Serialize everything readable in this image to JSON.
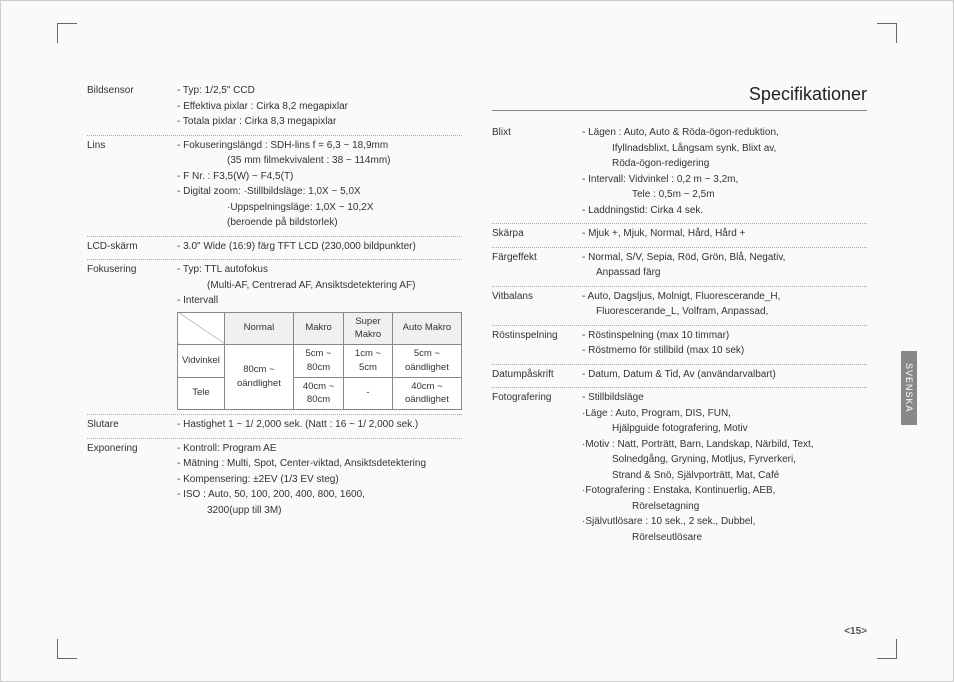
{
  "page_title": "Specifikationer",
  "side_tab": "SVENSKA",
  "page_number": "<15>",
  "left_specs": [
    {
      "label": "Bildsensor",
      "lines": [
        "- Typ: 1/2,5\" CCD",
        "- Effektiva pixlar : Cirka 8,2 megapixlar",
        "- Totala pixlar : Cirka 8,3 megapixlar"
      ]
    },
    {
      "label": "Lins",
      "lines": [
        "- Fokuseringslängd : SDH-lins f = 6,3 ~ 18,9mm",
        {
          "text": "(35 mm filmekvivalent : 38 ~ 114mm)",
          "class": "indent1"
        },
        "- F Nr. : F3,5(W) ~ F4,5(T)",
        "- Digital zoom: ·Stillbildsläge: 1,0X ~ 5,0X",
        {
          "text": "·Uppspelningsläge: 1,0X ~ 10,2X",
          "class": "indent1"
        },
        {
          "text": "(beroende på bildstorlek)",
          "class": "indent1"
        }
      ]
    },
    {
      "label": "LCD-skärm",
      "lines": [
        "- 3.0\" Wide (16:9) färg TFT LCD (230,000 bildpunkter)"
      ]
    },
    {
      "label": "Fokusering",
      "lines": [
        "- Typ: TTL autofokus",
        {
          "text": "(Multi-AF, Centrerad AF, Ansiktsdetektering AF)",
          "class": "indent2"
        },
        "- Intervall"
      ],
      "table": true
    },
    {
      "label": "Slutare",
      "lines": [
        "- Hastighet 1 ~ 1/ 2,000 sek. (Natt : 16 ~ 1/ 2,000 sek.)"
      ]
    },
    {
      "label": "Exponering",
      "lines": [
        "- Kontroll: Program AE",
        "- Mätning : Multi, Spot, Center-viktad, Ansiktsdetektering",
        "- Kompensering: ±2EV (1/3 EV steg)",
        "- ISO :  Auto, 50, 100, 200, 400, 800, 1600,",
        {
          "text": "3200(upp till 3M)",
          "class": "indent2"
        }
      ],
      "no_border": true
    }
  ],
  "focus_table": {
    "headers": [
      "",
      "Normal",
      "Makro",
      "Super Makro",
      "Auto Makro"
    ],
    "rows": [
      [
        "Vidvinkel",
        "80cm ~ oändlighet",
        "5cm ~ 80cm",
        "1cm ~ 5cm",
        "5cm ~ oändlighet"
      ],
      [
        "Tele",
        "",
        "40cm ~ 80cm",
        "-",
        "40cm ~ oändlighet"
      ]
    ]
  },
  "right_specs": [
    {
      "label": "Blixt",
      "lines": [
        "- Lägen : Auto, Auto & Röda-ögon-reduktion,",
        {
          "text": "Ifyllnadsblixt, Långsam synk, Blixt av,",
          "class": "indent2"
        },
        {
          "text": "Röda-ögon-redigering",
          "class": "indent2"
        },
        "- Intervall: Vidvinkel : 0,2 m ~ 3,2m,",
        {
          "text": "Tele : 0,5m ~ 2,5m",
          "class": "indent1"
        },
        "- Laddningstid: Cirka 4 sek."
      ]
    },
    {
      "label": "Skärpa",
      "lines": [
        "- Mjuk +, Mjuk, Normal, Hård, Hård +"
      ]
    },
    {
      "label": "Färgeffekt",
      "lines": [
        "- Normal, S/V, Sepia, Röd, Grön, Blå, Negativ,",
        {
          "text": "Anpassad färg",
          "class": "indent3"
        }
      ]
    },
    {
      "label": "Vitbalans",
      "lines": [
        "- Auto, Dagsljus, Molnigt, Fluorescerande_H,",
        {
          "text": "Fluorescerande_L, Volfram, Anpassad,",
          "class": "indent3"
        }
      ]
    },
    {
      "label": "Röstinspelning",
      "lines": [
        "- Röstinspelning (max 10 timmar)",
        "- Röstmemo för stillbild (max 10 sek)"
      ]
    },
    {
      "label": "Datumpåskrift",
      "lines": [
        "- Datum, Datum & Tid, Av (användarvalbart)"
      ]
    },
    {
      "label": "Fotografering",
      "lines": [
        "- Stillbildsläge",
        "·Läge : Auto, Program, DIS, FUN,",
        {
          "text": "Hjälpguide fotografering, Motiv",
          "class": "indent2"
        },
        "·Motiv : Natt, Porträtt, Barn, Landskap, Närbild, Text,",
        {
          "text": "Solnedgång, Gryning, Motljus, Fyrverkeri,",
          "class": "indent2"
        },
        {
          "text": "Strand & Snö, Självporträtt, Mat, Café",
          "class": "indent2"
        },
        "·Fotografering : Enstaka, Kontinuerlig, AEB,",
        {
          "text": "Rörelsetagning",
          "class": "indent1"
        },
        "·Självutlösare : 10 sek., 2 sek., Dubbel,",
        {
          "text": "Rörelseutlösare",
          "class": "indent1"
        }
      ],
      "no_border": true
    }
  ]
}
